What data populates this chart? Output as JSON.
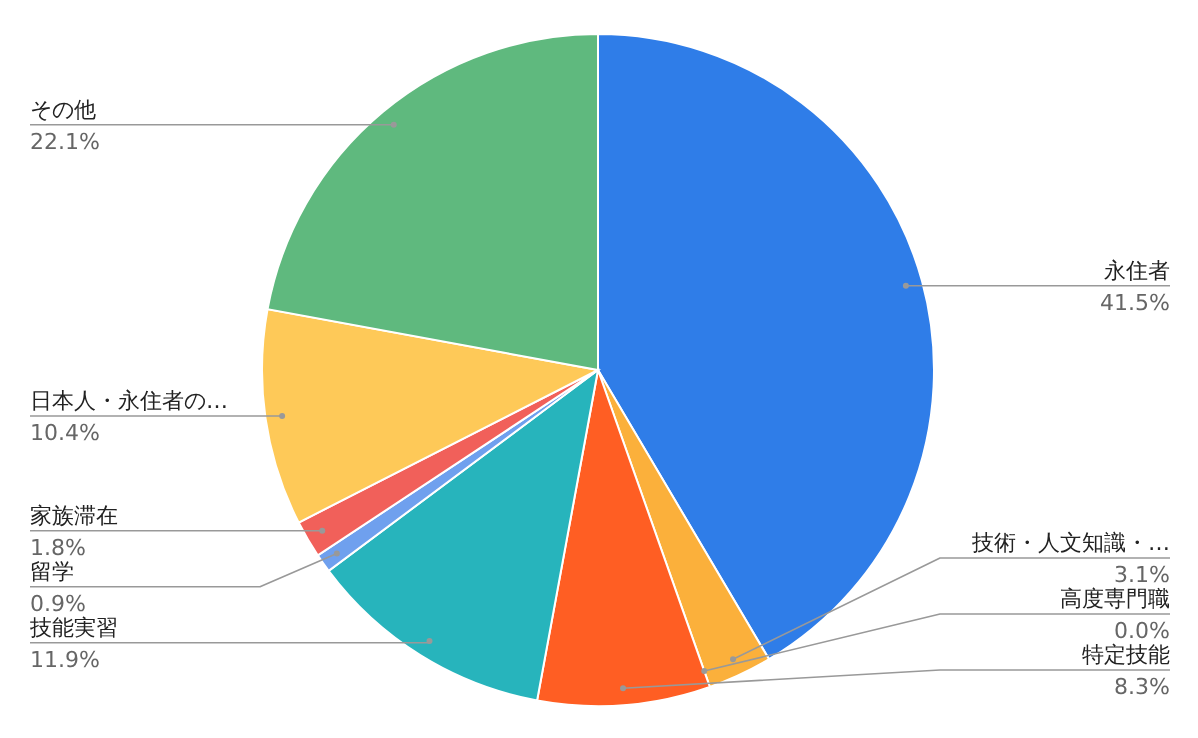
{
  "chart_data": {
    "type": "pie",
    "categories": [
      "永住者",
      "技術・人文知識・…",
      "高度専門職",
      "特定技能",
      "技能実習",
      "留学",
      "家族滞在",
      "日本人・永住者の…",
      "その他"
    ],
    "values": [
      41.5,
      3.1,
      0.0,
      8.3,
      11.9,
      0.9,
      1.8,
      10.4,
      22.1
    ],
    "value_labels": [
      "41.5%",
      "3.1%",
      "0.0%",
      "8.3%",
      "11.9%",
      "0.9%",
      "1.8%",
      "10.4%",
      "22.1%"
    ],
    "colors": [
      "#2f7de8",
      "#fbb03b",
      "#8e44ad",
      "#ff5e23",
      "#27b4bc",
      "#6fa0ee",
      "#f1605a",
      "#fec958",
      "#5fb97e"
    ]
  }
}
